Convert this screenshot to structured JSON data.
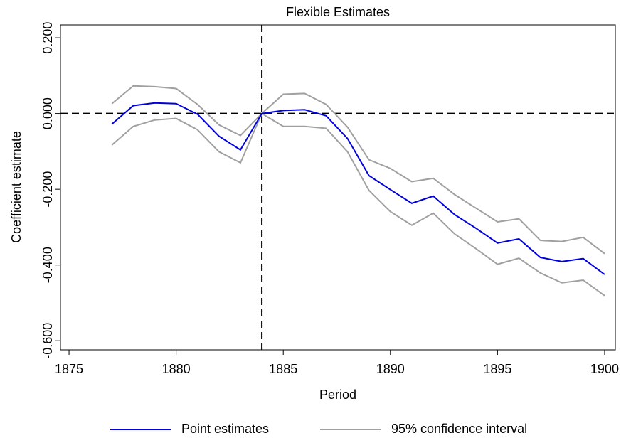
{
  "chart_data": {
    "type": "line",
    "title": "Flexible Estimates",
    "x_label": "Period",
    "y_label": "Coefficient estimate",
    "x": [
      1877,
      1878,
      1879,
      1880,
      1881,
      1882,
      1883,
      1884,
      1885,
      1886,
      1887,
      1888,
      1889,
      1890,
      1891,
      1892,
      1893,
      1894,
      1895,
      1896,
      1897,
      1898,
      1899,
      1900
    ],
    "series": [
      {
        "name": "Point estimates",
        "color": "#0000dd",
        "values": [
          -0.028,
          0.021,
          0.028,
          0.026,
          -0.002,
          -0.06,
          -0.096,
          0,
          0.008,
          0.01,
          -0.006,
          -0.066,
          -0.164,
          -0.201,
          -0.237,
          -0.218,
          -0.267,
          -0.303,
          -0.342,
          -0.331,
          -0.38,
          -0.391,
          -0.383,
          -0.425
        ]
      },
      {
        "name": "95% confidence interval",
        "color": "#a0a0a0",
        "values": [
          0.026,
          0.073,
          0.071,
          0.066,
          0.024,
          -0.03,
          -0.058,
          0,
          0.051,
          0.053,
          0.024,
          -0.036,
          -0.122,
          -0.145,
          -0.18,
          -0.171,
          -0.214,
          -0.25,
          -0.286,
          -0.278,
          -0.335,
          -0.338,
          -0.327,
          -0.37
        ],
        "lower": [
          -0.083,
          -0.034,
          -0.017,
          -0.013,
          -0.043,
          -0.101,
          -0.13,
          0,
          -0.034,
          -0.034,
          -0.039,
          -0.101,
          -0.203,
          -0.259,
          -0.295,
          -0.263,
          -0.318,
          -0.357,
          -0.398,
          -0.382,
          -0.421,
          -0.447,
          -0.44,
          -0.481
        ]
      }
    ],
    "xlim": [
      1874.6,
      1900.5
    ],
    "ylim": [
      -0.624,
      0.234
    ],
    "xticks": [
      1875,
      1880,
      1885,
      1890,
      1895,
      1900
    ],
    "yticks": [
      {
        "value": -0.6,
        "label": "-0.600"
      },
      {
        "value": -0.4,
        "label": "-0.400"
      },
      {
        "value": -0.2,
        "label": "-0.200"
      },
      {
        "value": 0,
        "label": "0.000"
      },
      {
        "value": 0.2,
        "label": "0.200"
      }
    ],
    "hline": 0,
    "vline": 1884
  }
}
